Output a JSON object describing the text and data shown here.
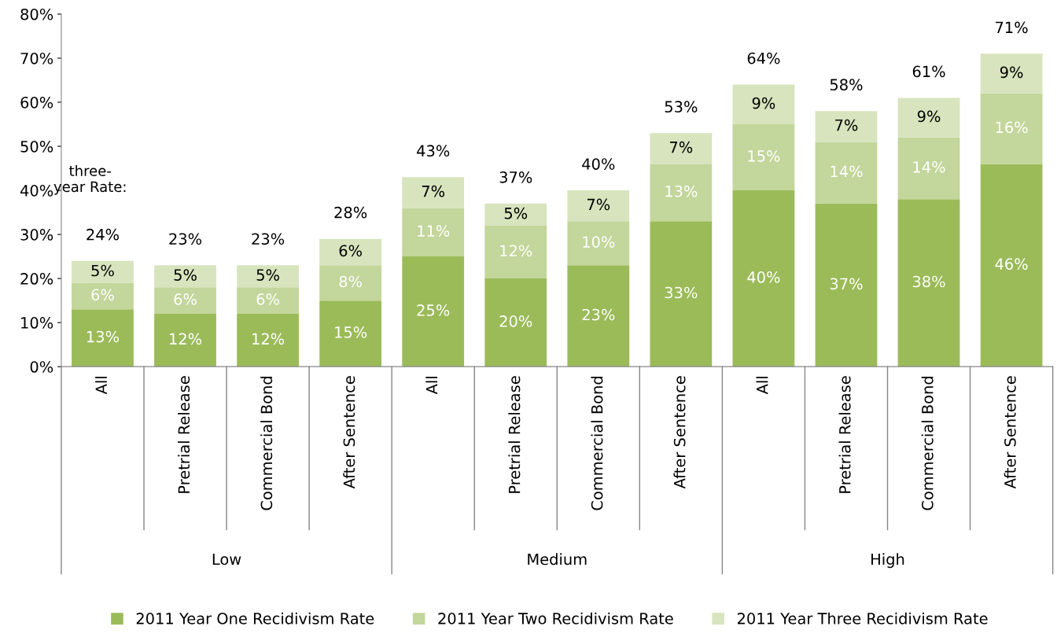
{
  "chart_data": {
    "type": "bar",
    "stacked": true,
    "categories": [
      "All",
      "Pretrial Release",
      "Commercial Bond",
      "After Sentence",
      "All",
      "Pretrial Release",
      "Commercial Bond",
      "After Sentence",
      "All",
      "Pretrial Release",
      "Commercial Bond",
      "After Sentence"
    ],
    "series": [
      {
        "name": "2011 Year One Recidivism Rate",
        "color": "#9bbb59",
        "values": [
          13,
          12,
          12,
          15,
          25,
          20,
          23,
          33,
          40,
          37,
          38,
          46
        ],
        "value_labels": [
          "13%",
          "12%",
          "12%",
          "15%",
          "25%",
          "20%",
          "23%",
          "33%",
          "40%",
          "37%",
          "38%",
          "46%"
        ]
      },
      {
        "name": "2011 Year Two Recidivism Rate",
        "color": "#c3d69b",
        "values": [
          6,
          6,
          6,
          8,
          11,
          12,
          10,
          13,
          15,
          14,
          14,
          16
        ],
        "value_labels": [
          "6%",
          "6%",
          "6%",
          "8%",
          "11%",
          "12%",
          "10%",
          "13%",
          "15%",
          "14%",
          "14%",
          "16%"
        ]
      },
      {
        "name": "2011 Year Three Recidivism Rate",
        "color": "#d7e4bd",
        "values": [
          5,
          5,
          5,
          6,
          7,
          5,
          7,
          7,
          9,
          7,
          9,
          9
        ],
        "value_labels": [
          "5%",
          "5%",
          "5%",
          "6%",
          "7%",
          "5%",
          "7%",
          "7%",
          "9%",
          "7%",
          "9%",
          "9%"
        ]
      }
    ],
    "totals": [
      "24%",
      "23%",
      "23%",
      "28%",
      "43%",
      "37%",
      "40%",
      "53%",
      "64%",
      "58%",
      "61%",
      "71%"
    ],
    "ylim": [
      0,
      80
    ],
    "yticks": [
      {
        "value": 0,
        "label": "0%"
      },
      {
        "value": 10,
        "label": "10%"
      },
      {
        "value": 20,
        "label": "20%"
      },
      {
        "value": 30,
        "label": "30%"
      },
      {
        "value": 40,
        "label": "40%"
      },
      {
        "value": 50,
        "label": "50%"
      },
      {
        "value": 60,
        "label": "60%"
      },
      {
        "value": 70,
        "label": "70%"
      },
      {
        "value": 80,
        "label": "80%"
      }
    ],
    "annotations": [
      "three-\nyear Rate:",
      "Low",
      "Medium",
      "High"
    ],
    "grid": false,
    "legend": "bottom"
  }
}
